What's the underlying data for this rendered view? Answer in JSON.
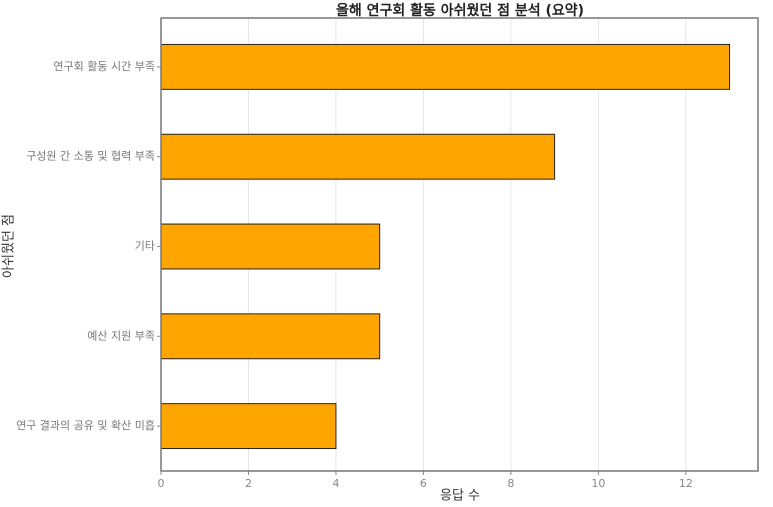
{
  "chart_data": {
    "type": "barh",
    "title": "올해 연구회 활동 아쉬웠던 점 분석 (요약)",
    "x_label": "응답 수",
    "y_label": "아쉬웠던 점",
    "categories": [
      "연구회 활동 시간 부족",
      "구성원 간 소통 및 협력 부족",
      "기타",
      "예산 지원 부족",
      "연구 결과의 공유 및 확산 미흡"
    ],
    "values": [
      13,
      9,
      5,
      5,
      4
    ],
    "color": "#ffa500",
    "xlim": [
      0,
      13.65
    ],
    "xticks": [
      0,
      2,
      4,
      6,
      8,
      10,
      12
    ],
    "grid": true
  }
}
